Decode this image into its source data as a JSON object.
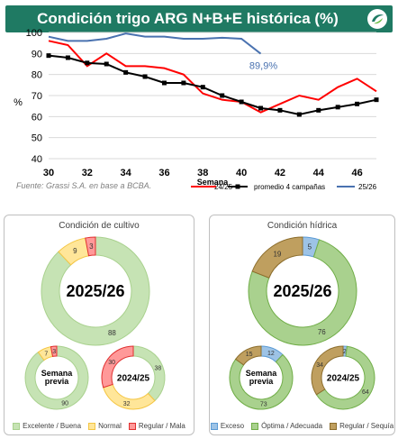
{
  "header": {
    "title": "Condición trigo ARG N+B+E histórica (%)"
  },
  "source": "Fuente: Grassi S.A. en base a BCBA.",
  "chart_data": [
    {
      "type": "line",
      "title": "Condición trigo ARG N+B+E histórica (%)",
      "xlabel": "Semana",
      "ylabel": "%",
      "xlim": [
        30,
        47
      ],
      "ylim": [
        40,
        100
      ],
      "x_ticks": [
        30,
        32,
        34,
        36,
        38,
        40,
        42,
        44,
        46
      ],
      "y_ticks": [
        40,
        50,
        60,
        70,
        80,
        90,
        100
      ],
      "grid": "horizontal",
      "legend": "bottom",
      "annotation": {
        "text": "89,9%",
        "x": 41,
        "y": 89.9
      },
      "series": [
        {
          "name": "24/25",
          "color": "#ff0000",
          "x": [
            30,
            31,
            32,
            33,
            34,
            35,
            36,
            37,
            38,
            39,
            40,
            41,
            42,
            43,
            44,
            45,
            46,
            47
          ],
          "values": [
            96,
            94,
            84,
            90,
            84,
            84,
            83,
            80,
            71,
            68,
            67,
            62,
            66,
            70,
            68,
            74,
            78,
            72
          ]
        },
        {
          "name": "promedio 4 campañas",
          "color": "#000000",
          "x": [
            30,
            31,
            32,
            33,
            34,
            35,
            36,
            37,
            38,
            39,
            40,
            41,
            42,
            43,
            44,
            45,
            46,
            47
          ],
          "values": [
            89,
            88,
            85.5,
            85,
            81,
            79,
            76,
            76,
            74,
            70,
            67,
            64,
            63,
            61,
            63,
            64.5,
            66,
            68
          ]
        },
        {
          "name": "25/26",
          "color": "#4a72b0",
          "x": [
            30,
            31,
            32,
            33,
            34,
            35,
            36,
            37,
            38,
            39,
            40,
            41
          ],
          "values": [
            98,
            96,
            96,
            97,
            99.5,
            98,
            98,
            97,
            97,
            97.5,
            97,
            89.9
          ]
        }
      ]
    },
    {
      "type": "pie",
      "title": "Condición de cultivo",
      "legend": [
        "Excelente / Buena",
        "Normal",
        "Regular / Mala"
      ],
      "colors": [
        "#c6e3b4",
        "#ffe699",
        "#ff9999"
      ],
      "borders": [
        "#a9d18e",
        "#f4c542",
        "#e03030"
      ],
      "rings": [
        {
          "label": "2025/26",
          "values": [
            88,
            9,
            3
          ]
        },
        {
          "label": "Semana previa",
          "values": [
            90,
            7,
            3
          ]
        },
        {
          "label": "2024/25",
          "values": [
            38,
            32,
            30
          ]
        }
      ]
    },
    {
      "type": "pie",
      "title": "Condición hídrica",
      "legend": [
        "Exceso",
        "Óptima / Adecuada",
        "Regular / Sequía"
      ],
      "colors": [
        "#9dc3e6",
        "#a9d18e",
        "#bf9f5f"
      ],
      "borders": [
        "#5b9bd5",
        "#70ad47",
        "#8c6d2c"
      ],
      "rings": [
        {
          "label": "2025/26",
          "values": [
            5,
            76,
            19
          ]
        },
        {
          "label": "Semana previa",
          "values": [
            12,
            73,
            15
          ]
        },
        {
          "label": "2024/25",
          "values": [
            2,
            64,
            34
          ]
        }
      ]
    }
  ]
}
